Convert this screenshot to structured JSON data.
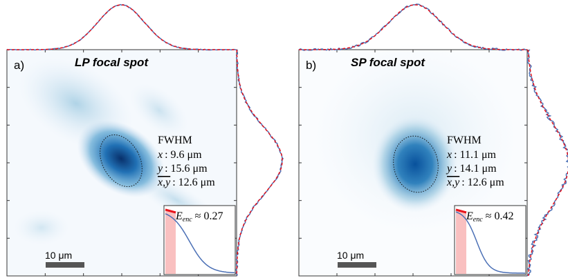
{
  "panels": [
    {
      "label": "a)",
      "title": "LP focal spot",
      "fwhm": "FWHM",
      "x_var": "x",
      "x_value": ": 9.6 μm",
      "y_var": "y",
      "y_value": ": 15.6 μm",
      "mean_var": "x,y",
      "mean_value": ": 12.6 μm",
      "enc_var": "E",
      "enc_sub": "enc",
      "enc_value": "≈ 0.27",
      "scale": "10 μm"
    },
    {
      "label": "b)",
      "title": "SP focal spot",
      "fwhm": "FWHM",
      "x_var": "x",
      "x_value": ": 11.1 μm",
      "y_var": "y",
      "y_value": ": 14.1 μm",
      "mean_var": "x,y",
      "mean_value": ": 12.6 μm",
      "enc_var": "E",
      "enc_sub": "enc",
      "enc_value": "≈ 0.42",
      "scale": "10 μm"
    }
  ]
}
